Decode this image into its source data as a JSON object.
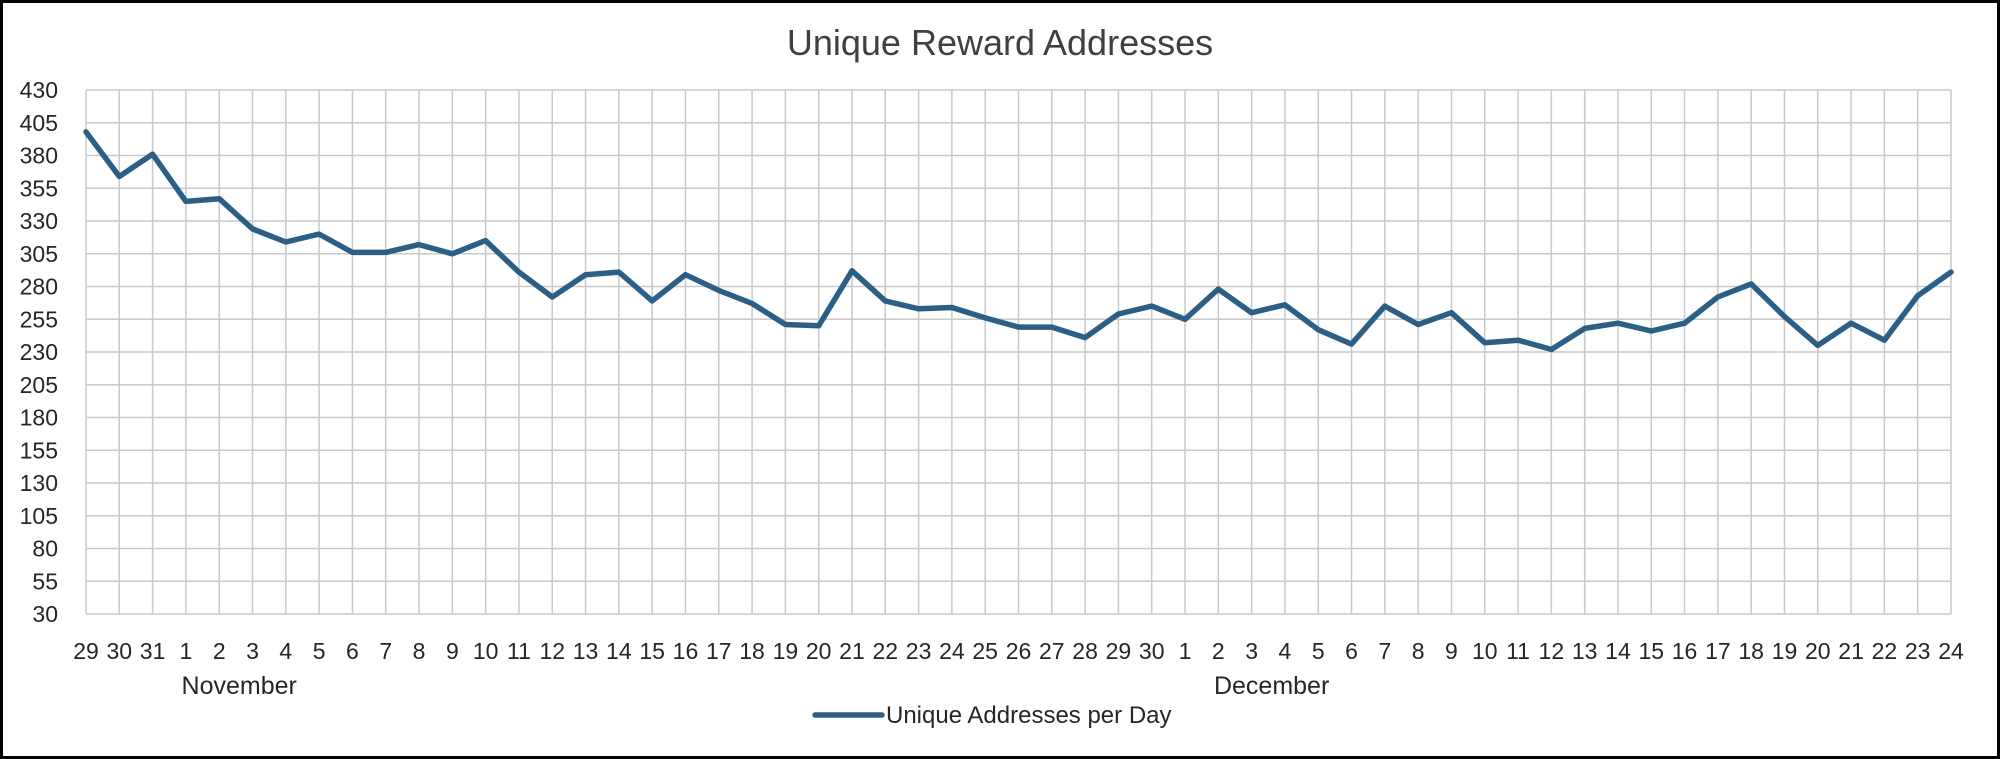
{
  "chart_data": {
    "type": "line",
    "title": "Unique Reward Addresses",
    "xlabel": "",
    "ylabel": "",
    "ylim": [
      30,
      430
    ],
    "yticks": [
      30,
      55,
      80,
      105,
      130,
      155,
      180,
      205,
      230,
      255,
      280,
      305,
      330,
      355,
      380,
      405,
      430
    ],
    "grid": true,
    "legend_position": "bottom",
    "categories": [
      "29",
      "30",
      "31",
      "1",
      "2",
      "3",
      "4",
      "5",
      "6",
      "7",
      "8",
      "9",
      "10",
      "11",
      "12",
      "13",
      "14",
      "15",
      "16",
      "17",
      "18",
      "19",
      "20",
      "21",
      "22",
      "23",
      "24",
      "25",
      "26",
      "27",
      "28",
      "29",
      "30",
      "1",
      "2",
      "3",
      "4",
      "5",
      "6",
      "7",
      "8",
      "9",
      "10",
      "11",
      "12",
      "13",
      "14",
      "15",
      "16",
      "17",
      "18",
      "19",
      "20",
      "21",
      "22",
      "23",
      "24"
    ],
    "month_labels": [
      {
        "label": "November",
        "category_index": 4
      },
      {
        "label": "December",
        "category_index": 35
      }
    ],
    "series": [
      {
        "name": "Unique Addresses per Day",
        "color": "#2c5f86",
        "values": [
          398,
          364,
          381,
          345,
          347,
          324,
          314,
          320,
          306,
          306,
          312,
          305,
          315,
          291,
          272,
          289,
          291,
          269,
          289,
          277,
          267,
          251,
          250,
          292,
          269,
          263,
          264,
          256,
          249,
          249,
          241,
          259,
          265,
          255,
          278,
          260,
          266,
          247,
          236,
          265,
          251,
          260,
          237,
          239,
          232,
          248,
          252,
          246,
          252,
          272,
          282,
          257,
          235,
          252,
          239,
          273,
          291
        ]
      }
    ]
  }
}
